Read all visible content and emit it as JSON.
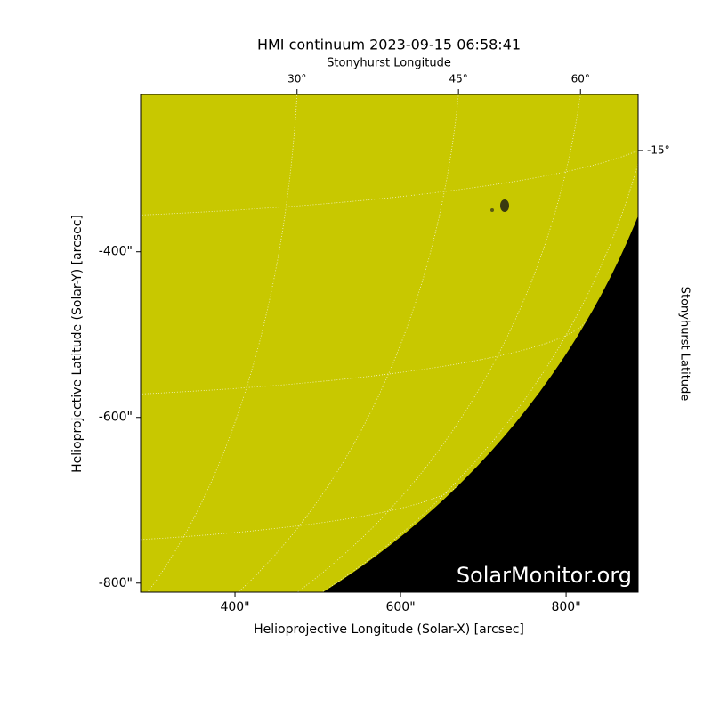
{
  "chart_data": {
    "type": "solar-image",
    "title": "HMI continuum 2023-09-15 06:58:41",
    "x_label": "Helioprojective Longitude (Solar-X) [arcsec]",
    "y_label": "Helioprojective Latitude (Solar-Y) [arcsec]",
    "top_label": "Stonyhurst Longitude",
    "right_label": "Stonyhurst Latitude",
    "watermark": "SolarMonitor.org",
    "xlim": [
      286,
      887
    ],
    "ylim": [
      -811,
      -210
    ],
    "xticks": [
      {
        "value": 400,
        "label": "400\""
      },
      {
        "value": 600,
        "label": "600\""
      },
      {
        "value": 800,
        "label": "800\""
      }
    ],
    "yticks": [
      {
        "value": -400,
        "label": "-400\""
      },
      {
        "value": -600,
        "label": "-600\""
      },
      {
        "value": -800,
        "label": "-800\""
      }
    ],
    "lon_ticks": [
      {
        "value": 30,
        "label": "30°"
      },
      {
        "value": 45,
        "label": "45°"
      },
      {
        "value": 60,
        "label": "60°"
      }
    ],
    "lat_ticks": [
      {
        "value": -15,
        "label": "-15°"
      }
    ],
    "rsun_arcsec": 956,
    "b0_deg": 7.2,
    "grid_spacing_deg": 15,
    "disk_color": "#c8c800",
    "background_color": "#000000",
    "grid": true
  }
}
